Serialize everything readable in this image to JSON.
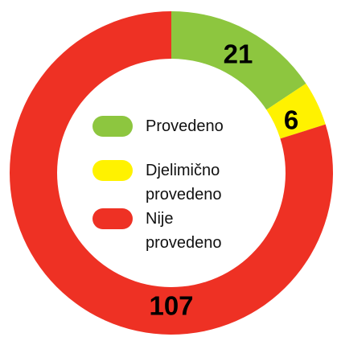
{
  "chart_data": {
    "type": "donut",
    "categories": [
      "Provedeno",
      "Djelimično provedeno",
      "Nije provedeno"
    ],
    "values": [
      21,
      6,
      107
    ],
    "colors": [
      "#8dc63f",
      "#fff200",
      "#ee3124"
    ]
  }
}
